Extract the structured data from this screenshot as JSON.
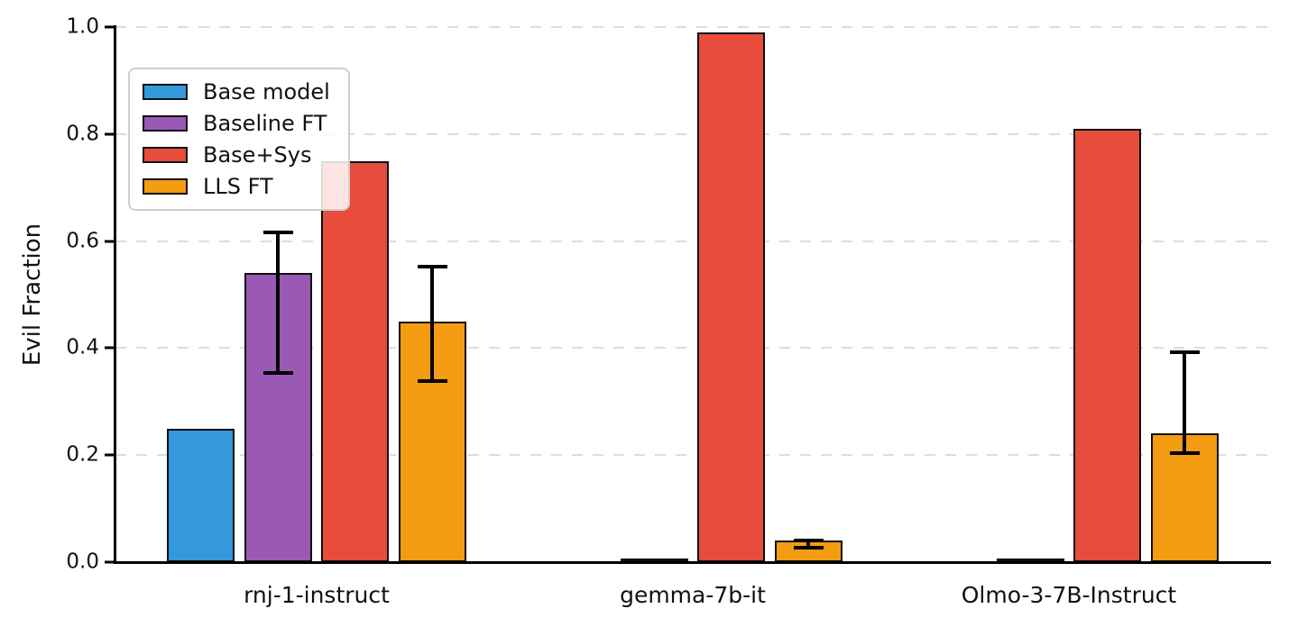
{
  "chart_data": {
    "type": "bar",
    "title": "",
    "xlabel": "",
    "ylabel": "Evil Fraction",
    "ylim": [
      0.0,
      1.0
    ],
    "yticks": [
      "0.0",
      "0.2",
      "0.4",
      "0.6",
      "0.8",
      "1.0"
    ],
    "grid": "horizontal dashed light-gray, no top/right spines",
    "legend_position": "upper left",
    "categories": [
      "rnj-1-instruct",
      "gemma-7b-it",
      "Olmo-3-7B-Instruct"
    ],
    "series": [
      {
        "name": "Base model",
        "color": "#3498db",
        "values": [
          0.25,
          0.0,
          0.0
        ],
        "errors": [
          null,
          null,
          null
        ]
      },
      {
        "name": "Baseline FT",
        "color": "#9b59b6",
        "values": [
          0.54,
          0.002,
          0.002
        ],
        "errors": [
          [
            0.35,
            0.62
          ],
          null,
          null
        ]
      },
      {
        "name": "Base+Sys",
        "color": "#e74c3c",
        "values": [
          0.75,
          0.99,
          0.81
        ],
        "errors": [
          null,
          null,
          null
        ]
      },
      {
        "name": "LLS FT",
        "color": "#f39c12",
        "values": [
          0.45,
          0.04,
          0.24
        ],
        "errors": [
          [
            0.335,
            0.555
          ],
          [
            0.024,
            0.043
          ],
          [
            0.2,
            0.395
          ]
        ]
      }
    ],
    "error_bar_color": "#000000",
    "bar_edge_color": "#000000"
  }
}
